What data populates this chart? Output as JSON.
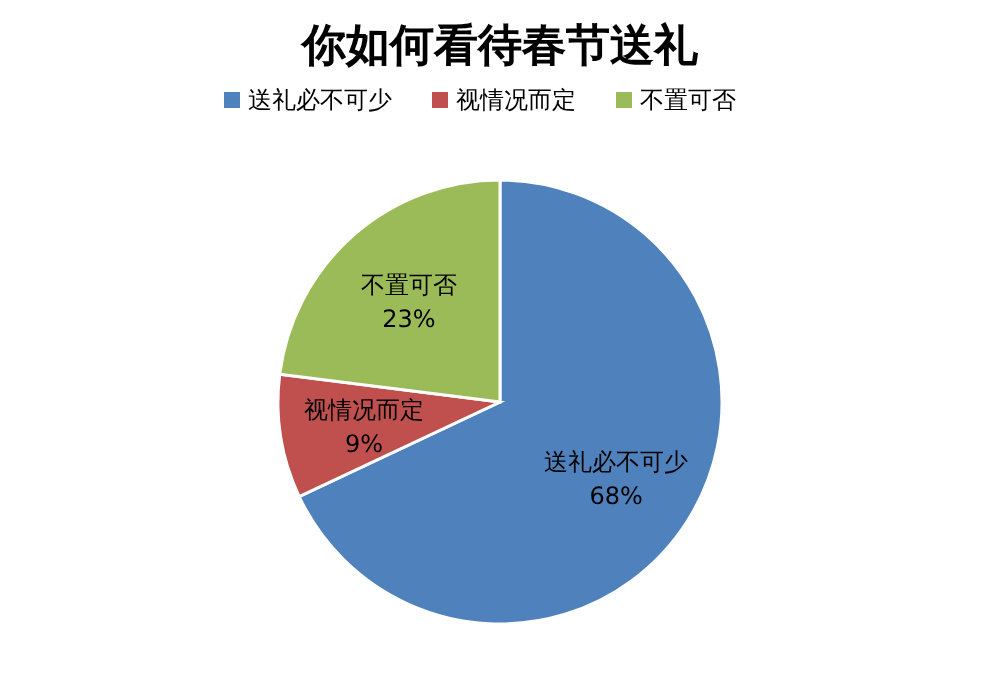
{
  "chart_data": {
    "type": "pie",
    "title": "你如何看待春节送礼",
    "categories": [
      "送礼必不可少",
      "视情况而定",
      "不置可否"
    ],
    "values": [
      68,
      9,
      23
    ],
    "colors": [
      "#4f81bd",
      "#c0504d",
      "#9bbb59"
    ],
    "value_labels": [
      "68%",
      "9%",
      "23%"
    ],
    "legend": "top"
  }
}
